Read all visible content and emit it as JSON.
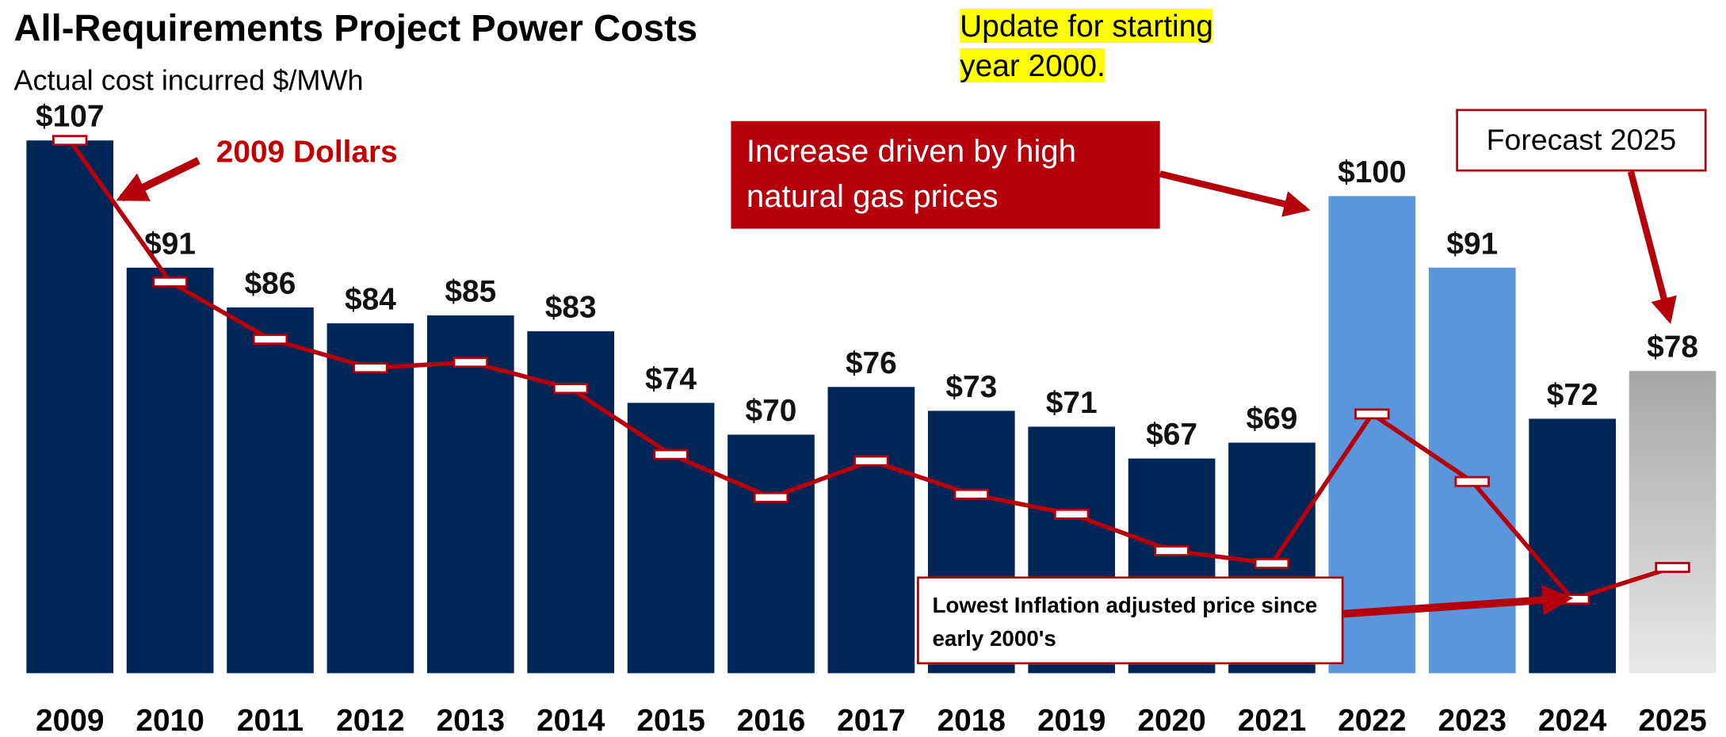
{
  "chart_data": {
    "type": "bar",
    "title": "All-Requirements Project Power Costs",
    "subtitle": "Actual cost incurred $/MWh",
    "categories": [
      "2009",
      "2010",
      "2011",
      "2012",
      "2013",
      "2014",
      "2015",
      "2016",
      "2017",
      "2018",
      "2019",
      "2020",
      "2021",
      "2022",
      "2023",
      "2024",
      "2025"
    ],
    "values": [
      107,
      91,
      86,
      84,
      85,
      83,
      74,
      70,
      76,
      73,
      71,
      67,
      69,
      100,
      91,
      72,
      78
    ],
    "value_labels": [
      "$107",
      "$91",
      "$86",
      "$84",
      "$85",
      "$83",
      "$74",
      "$70",
      "$76",
      "$73",
      "$71",
      "$67",
      "$69",
      "$100",
      "$91",
      "$72",
      "$78"
    ],
    "colors": [
      "#002657",
      "#002657",
      "#002657",
      "#002657",
      "#002657",
      "#002657",
      "#002657",
      "#002657",
      "#002657",
      "#002657",
      "#002657",
      "#002657",
      "#002657",
      "#5b95dc",
      "#5b95dc",
      "#002657",
      "#a6a6a6"
    ],
    "ylim": [
      40,
      110
    ],
    "series": [
      {
        "name": "2009 Dollars",
        "type": "line",
        "color": "#b5000b",
        "values": [
          107,
          89.2,
          82,
          78.4,
          79.1,
          75.8,
          67.5,
          62.1,
          66.7,
          62.5,
          60,
          55.4,
          53.8,
          72.6,
          64.1,
          49.3,
          53.3
        ]
      }
    ],
    "annotations": [
      "Update for starting year 2000.",
      "Increase driven by high natural gas prices",
      "Forecast 2025",
      "Lowest Inflation adjusted price since early 2000's"
    ]
  }
}
